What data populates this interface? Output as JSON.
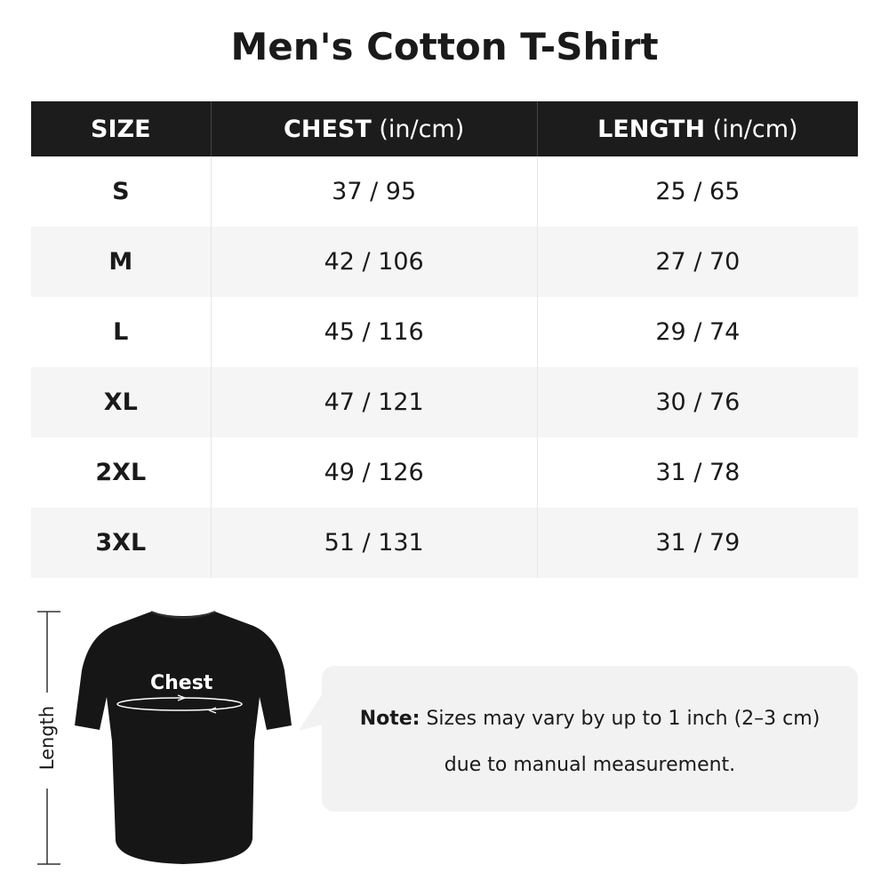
{
  "title": "Men's Cotton T-Shirt",
  "table": {
    "headers": [
      {
        "label": "SIZE",
        "unit": ""
      },
      {
        "label": "CHEST",
        "unit": " (in/cm)"
      },
      {
        "label": "LENGTH",
        "unit": " (in/cm)"
      }
    ],
    "rows": [
      {
        "size": "S",
        "chest": "37 / 95",
        "length": "25 / 65"
      },
      {
        "size": "M",
        "chest": "42 / 106",
        "length": "27 / 70"
      },
      {
        "size": "L",
        "chest": "45 / 116",
        "length": "29 / 74"
      },
      {
        "size": "XL",
        "chest": "47 / 121",
        "length": "30 / 76"
      },
      {
        "size": "2XL",
        "chest": "49 / 126",
        "length": "31 / 78"
      },
      {
        "size": "3XL",
        "chest": "51 / 131",
        "length": "31 / 79"
      }
    ]
  },
  "diagram": {
    "length_label": "Length",
    "chest_label": "Chest"
  },
  "note": {
    "prefix": "Note:",
    "line1": " Sizes may vary by up to 1 inch (2–3 cm)",
    "line2": "due to manual measurement."
  },
  "colors": {
    "header_bg": "#1c1c1c",
    "alt_row": "#f5f5f5",
    "note_bg": "#f2f2f2"
  }
}
